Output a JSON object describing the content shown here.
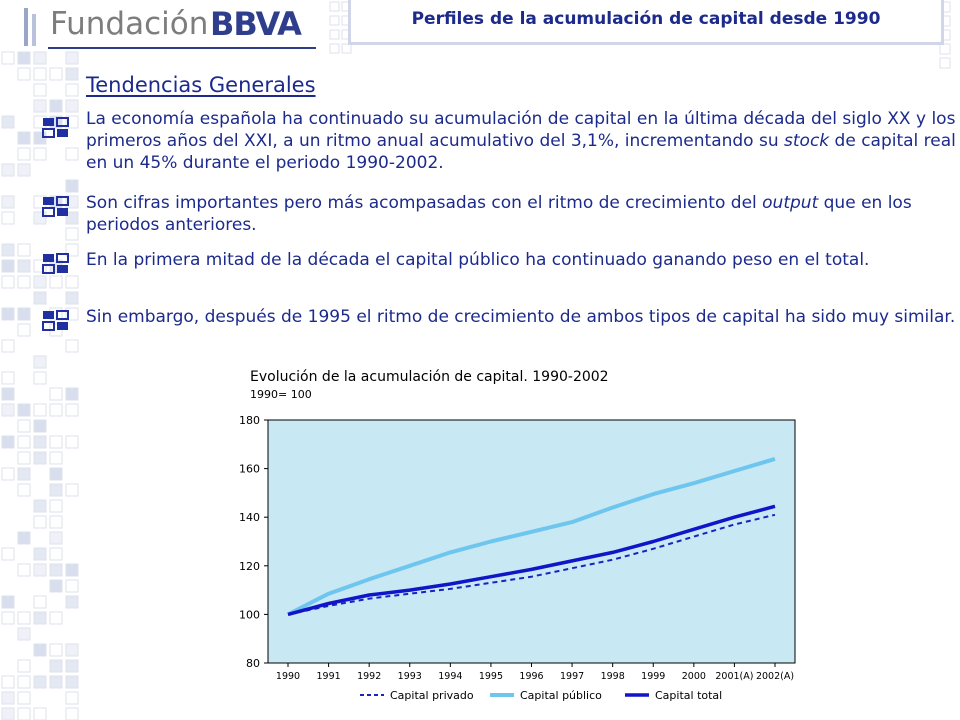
{
  "header": {
    "logo_word": "Fundación",
    "logo_brand": "BBVA",
    "title": "Perfiles de la acumulación de capital desde 1990"
  },
  "section": {
    "title": "Tendencias Generales",
    "paragraphs": [
      {
        "pre": "La economía española ha continuado su acumulación de capital en la última década del siglo XX y los primeros años del XXI, a un ritmo anual acumulativo del 3,1%, incrementando su ",
        "em": "stock",
        "post": " de capital real en un 45% durante el periodo 1990-2002."
      },
      {
        "pre": "Son cifras importantes pero más acompasadas con el ritmo de crecimiento del ",
        "em": "output",
        "post": " que en los periodos anteriores."
      },
      {
        "pre": "En la primera mitad de la década el capital público ha continuado ganando peso en el total.",
        "em": "",
        "post": ""
      },
      {
        "pre": "Sin embargo, después de 1995 el ritmo de crecimiento de ambos tipos de capital ha sido muy similar.",
        "em": "",
        "post": ""
      }
    ]
  },
  "colors": {
    "text": "#1c2a8c",
    "panel_bg": "#c8e8f4",
    "privado": "#1a22c0",
    "publico": "#6ec6ef",
    "total": "#1214c8"
  },
  "chart_data": {
    "type": "line",
    "title": "Evolución de la acumulación de capital. 1990-2002",
    "subtitle": "1990= 100",
    "categories": [
      "1990",
      "1991",
      "1992",
      "1993",
      "1994",
      "1995",
      "1996",
      "1997",
      "1998",
      "1999",
      "2000",
      "2001(A)",
      "2002(A)"
    ],
    "ylim": [
      80,
      180
    ],
    "yticks": [
      80,
      100,
      120,
      140,
      160,
      180
    ],
    "grid": false,
    "legend_position": "bottom",
    "series": [
      {
        "name": "Capital privado",
        "style": "dashed",
        "values": [
          100,
          103.5,
          106.5,
          108.5,
          110.5,
          113,
          115.5,
          119,
          122.5,
          127,
          132,
          137,
          141
        ]
      },
      {
        "name": "Capital público",
        "style": "solid",
        "values": [
          100,
          108.5,
          114.5,
          120,
          125.5,
          130,
          134,
          138,
          144,
          149.5,
          154,
          159,
          164
        ]
      },
      {
        "name": "Capital total",
        "style": "solid-thick",
        "values": [
          100,
          104.5,
          108,
          110,
          112.5,
          115.5,
          118.5,
          122,
          125.5,
          130,
          135,
          140,
          144.5
        ]
      }
    ]
  }
}
